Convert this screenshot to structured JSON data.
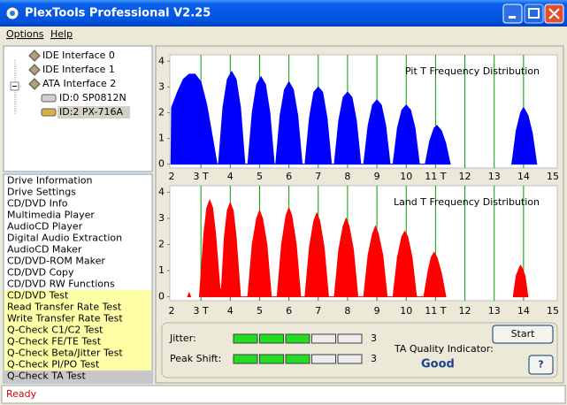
{
  "window": {
    "title": "PlexTools Professional V2.25"
  },
  "menu": [
    "Options",
    "Help"
  ],
  "tree": [
    {
      "label": "IDE Interface 0",
      "kind": "interface"
    },
    {
      "label": "IDE Interface 1",
      "kind": "interface"
    },
    {
      "label": "ATA Interface 2",
      "kind": "interface"
    },
    {
      "label": "ID:0  SP0812N",
      "kind": "drive"
    },
    {
      "label": "ID:2  PX-716A",
      "kind": "drive",
      "selected": true
    }
  ],
  "functions": [
    {
      "label": "Drive Information"
    },
    {
      "label": "Drive Settings"
    },
    {
      "label": "CD/DVD Info"
    },
    {
      "label": "Multimedia Player"
    },
    {
      "label": "AudioCD Player"
    },
    {
      "label": "Digital Audio Extraction"
    },
    {
      "label": "AudioCD Maker"
    },
    {
      "label": "CD/DVD-ROM Maker"
    },
    {
      "label": "CD/DVD Copy"
    },
    {
      "label": "CD/DVD RW Functions"
    },
    {
      "label": "CD/DVD Test",
      "highlight": true
    },
    {
      "label": "Read Transfer Rate Test",
      "highlight": true
    },
    {
      "label": "Write Transfer Rate Test",
      "highlight": true
    },
    {
      "label": "Q-Check C1/C2 Test",
      "highlight": true
    },
    {
      "label": "Q-Check FE/TE Test",
      "highlight": true
    },
    {
      "label": "Q-Check Beta/Jitter Test",
      "highlight": true
    },
    {
      "label": "Q-Check PI/PO Test",
      "highlight": true
    },
    {
      "label": "Q-Check TA Test",
      "selected": true
    }
  ],
  "chart_data": [
    {
      "type": "area",
      "title": "Pit T Frequency Distribution",
      "color": "#0000ff",
      "grid_color": "#00a000",
      "x": [
        1.98,
        2.0,
        2.2,
        2.4,
        2.6,
        2.8,
        3.0,
        3.2,
        3.4,
        3.55,
        3.6,
        3.75,
        3.9,
        4.05,
        4.2,
        4.35,
        4.5,
        4.6,
        4.75,
        4.9,
        5.05,
        5.2,
        5.35,
        5.5,
        5.55,
        5.7,
        5.85,
        6.0,
        6.15,
        6.3,
        6.45,
        6.55,
        6.7,
        6.85,
        7.0,
        7.15,
        7.3,
        7.45,
        7.55,
        7.7,
        7.85,
        8.0,
        8.15,
        8.3,
        8.45,
        8.55,
        8.7,
        8.85,
        9.0,
        9.15,
        9.3,
        9.45,
        9.55,
        9.7,
        9.85,
        10.0,
        10.15,
        10.3,
        10.45,
        10.65,
        10.8,
        10.95,
        11.05,
        11.2,
        11.35,
        11.5,
        12.5,
        13.6,
        13.75,
        13.9,
        14.0,
        14.15,
        14.3,
        14.45
      ],
      "values": [
        0,
        2.2,
        2.8,
        3.3,
        3.5,
        3.5,
        3.2,
        2.3,
        1.0,
        0,
        0,
        2.2,
        3.3,
        3.6,
        3.3,
        2.2,
        0,
        0,
        2.0,
        3.1,
        3.4,
        3.1,
        2.0,
        0,
        0,
        1.9,
        2.9,
        3.2,
        2.9,
        1.9,
        0,
        0,
        1.8,
        2.8,
        3.0,
        2.8,
        1.8,
        0,
        0,
        1.7,
        2.6,
        2.8,
        2.6,
        1.7,
        0,
        0,
        1.5,
        2.3,
        2.5,
        2.3,
        1.5,
        0,
        0,
        1.4,
        2.1,
        2.3,
        2.1,
        1.4,
        0,
        0,
        0.9,
        1.4,
        1.5,
        1.3,
        0.8,
        0,
        null,
        0,
        1.3,
        2.0,
        2.2,
        1.9,
        1.2,
        0
      ],
      "xlim": [
        1.94,
        15.15
      ],
      "ylim": [
        -0.15,
        4.25
      ],
      "xticks": [
        2,
        {
          "value": 3,
          "label": "3 T"
        },
        4,
        5,
        6,
        7,
        8,
        9,
        10,
        {
          "value": 11,
          "label": "11 T"
        },
        12,
        13,
        14,
        15
      ],
      "yticks": [
        0,
        1,
        2,
        3,
        4
      ],
      "grid": true
    },
    {
      "type": "area",
      "title": "Land T Frequency Distribution",
      "color": "#ff0000",
      "grid_color": "#00a000",
      "x": [
        2.55,
        2.6,
        2.65,
        2.9,
        2.95,
        3.1,
        3.2,
        3.3,
        3.4,
        3.5,
        3.65,
        3.7,
        3.8,
        3.9,
        4.0,
        4.1,
        4.2,
        4.35,
        4.6,
        4.75,
        4.9,
        5.0,
        5.1,
        5.25,
        5.4,
        5.6,
        5.75,
        5.9,
        6.0,
        6.1,
        6.25,
        6.4,
        6.55,
        6.7,
        6.85,
        6.95,
        7.05,
        7.2,
        7.35,
        7.55,
        7.7,
        7.85,
        7.95,
        8.05,
        8.2,
        8.35,
        8.55,
        8.7,
        8.85,
        8.95,
        9.05,
        9.2,
        9.35,
        9.55,
        9.7,
        9.85,
        9.95,
        10.05,
        10.2,
        10.35,
        10.6,
        10.75,
        10.85,
        10.95,
        11.05,
        11.2,
        11.35,
        12.5,
        13.65,
        13.75,
        13.85,
        13.9,
        13.95,
        14.05,
        14.15
      ],
      "values": [
        0,
        0.15,
        0,
        null,
        0,
        2.4,
        3.4,
        3.7,
        3.4,
        2.4,
        0.3,
        0.3,
        2.3,
        3.3,
        3.6,
        3.3,
        2.3,
        0,
        0,
        2.0,
        3.0,
        3.3,
        3.0,
        2.0,
        0,
        0,
        2.0,
        3.1,
        3.4,
        3.1,
        2.0,
        0,
        0,
        1.9,
        2.9,
        3.2,
        2.9,
        1.9,
        0,
        0,
        1.8,
        2.7,
        3.0,
        2.7,
        1.8,
        0,
        0,
        1.6,
        2.4,
        2.7,
        2.4,
        1.6,
        0,
        0,
        1.5,
        2.3,
        2.5,
        2.3,
        1.5,
        0,
        0,
        1.0,
        1.5,
        1.7,
        1.5,
        0.9,
        0,
        null,
        0,
        0.8,
        1.1,
        1.2,
        1.1,
        0.8,
        0
      ],
      "xlim": [
        1.94,
        15.15
      ],
      "ylim": [
        -0.15,
        4.25
      ],
      "xticks": [
        2,
        {
          "value": 3,
          "label": "3 T"
        },
        4,
        5,
        6,
        7,
        8,
        9,
        10,
        {
          "value": 11,
          "label": "11 T"
        },
        12,
        13,
        14,
        15
      ],
      "yticks": [
        0,
        1,
        2,
        3,
        4
      ],
      "grid": true
    }
  ],
  "meters": [
    {
      "label": "Jitter:",
      "value": 3,
      "segments": 5
    },
    {
      "label": "Peak Shift:",
      "value": 3,
      "segments": 5
    }
  ],
  "quality": {
    "label": "TA Quality Indicator:",
    "value": "Good"
  },
  "buttons": {
    "start": "Start",
    "help": "?"
  },
  "status": "Ready"
}
